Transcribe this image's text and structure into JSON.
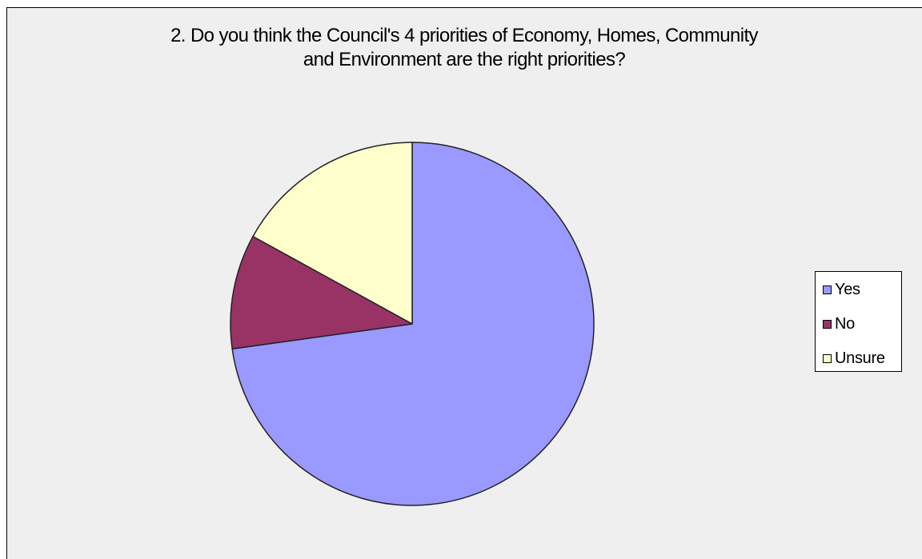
{
  "chart_data": {
    "type": "pie",
    "title_lines": [
      "2. Do you think the Council's 4 priorities of Economy, Homes, Community",
      "and Environment are the right priorities?"
    ],
    "categories": [
      "Yes",
      "No",
      "Unsure"
    ],
    "values": [
      72.8,
      10.2,
      17.0
    ],
    "colors": [
      "#9999ff",
      "#993366",
      "#ffffcc"
    ],
    "legend_position": "right"
  }
}
